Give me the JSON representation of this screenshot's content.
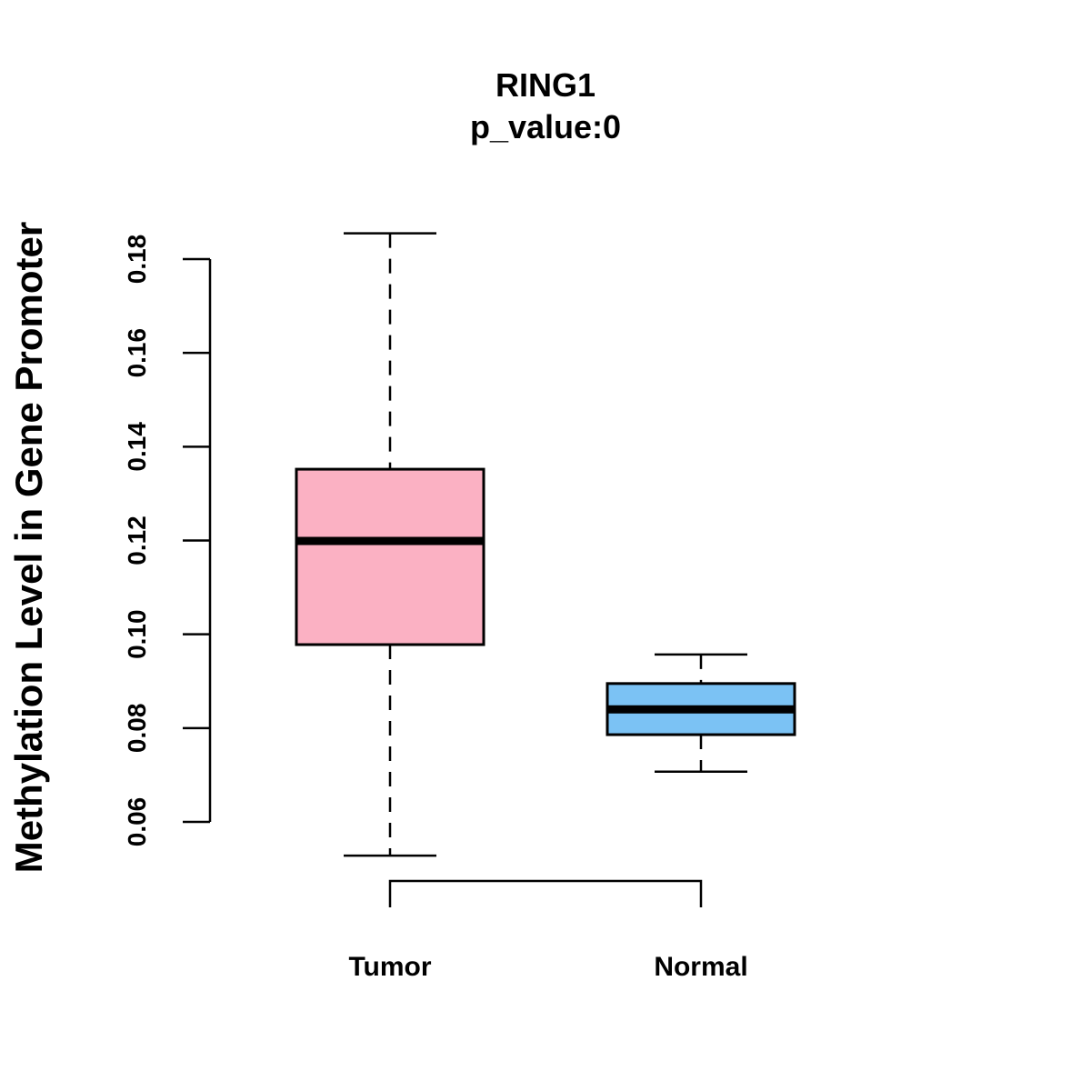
{
  "chart_data": {
    "type": "boxplot",
    "title": "RING1",
    "subtitle": "p_value:0",
    "xlabel": "",
    "ylabel": "Methylation Level in Gene Promoter",
    "ylim": [
      0.06,
      0.18
    ],
    "yticks": [
      0.06,
      0.08,
      0.1,
      0.12,
      0.14,
      0.16,
      0.18
    ],
    "ytick_labels": [
      "0.06",
      "0.08",
      "0.10",
      "0.12",
      "0.14",
      "0.16",
      "0.18"
    ],
    "categories": [
      "Tumor",
      "Normal"
    ],
    "boxes": [
      {
        "name": "Tumor",
        "whisker_low": 0.0528,
        "q1": 0.0978,
        "median": 0.1199,
        "q3": 0.1352,
        "whisker_high": 0.1855,
        "color": "#FBB1C3"
      },
      {
        "name": "Normal",
        "whisker_low": 0.0707,
        "q1": 0.0786,
        "median": 0.084,
        "q3": 0.0895,
        "whisker_high": 0.0957,
        "color": "#7BC2F4"
      }
    ],
    "bracket": [
      "Tumor",
      "Normal"
    ],
    "grid": false,
    "legend": "none"
  }
}
